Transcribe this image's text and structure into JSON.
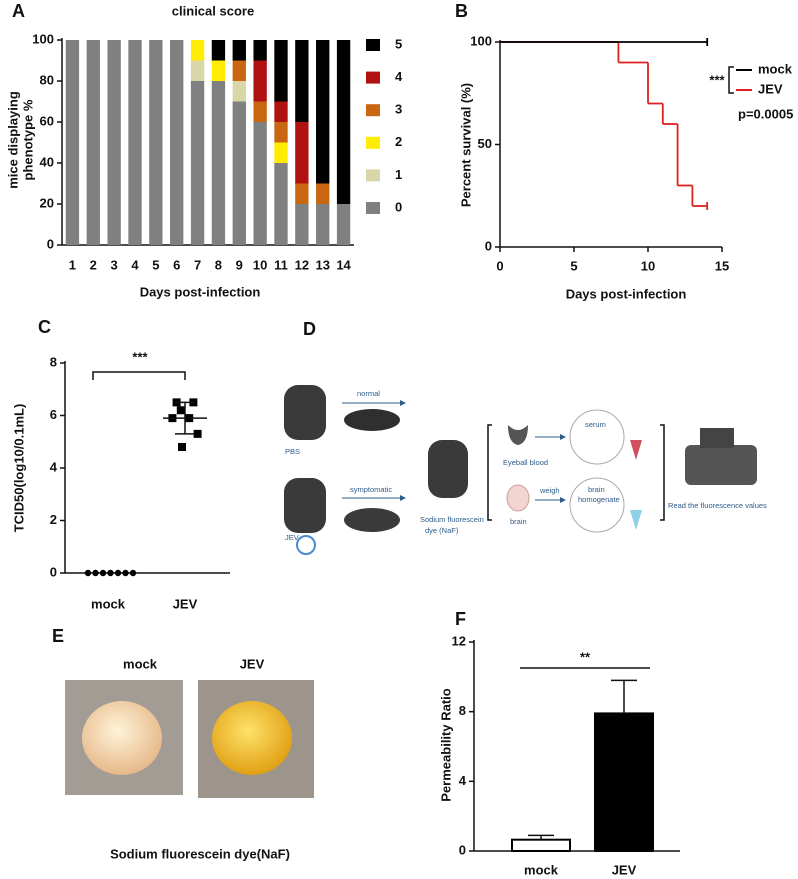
{
  "chart_data": [
    {
      "panel": "A",
      "type": "bar",
      "stacked": true,
      "title": "clinical score",
      "x_label": "Days post-infection",
      "y_label": [
        "mice displaying",
        "phenotype %"
      ],
      "categories": [
        "1",
        "2",
        "3",
        "4",
        "5",
        "6",
        "7",
        "8",
        "9",
        "10",
        "11",
        "12",
        "13",
        "14"
      ],
      "series": [
        {
          "name": "5",
          "color": "#000000",
          "values": [
            0,
            0,
            0,
            0,
            0,
            0,
            0,
            10,
            10,
            10,
            30,
            40,
            70,
            80
          ]
        },
        {
          "name": "4",
          "color": "#b01212",
          "values": [
            0,
            0,
            0,
            0,
            0,
            0,
            0,
            0,
            0,
            20,
            10,
            30,
            0,
            0
          ]
        },
        {
          "name": "3",
          "color": "#c96612",
          "values": [
            0,
            0,
            0,
            0,
            0,
            0,
            0,
            0,
            10,
            10,
            10,
            10,
            10,
            0
          ]
        },
        {
          "name": "2",
          "color": "#ffec00",
          "values": [
            0,
            0,
            0,
            0,
            0,
            0,
            10,
            10,
            0,
            0,
            10,
            0,
            0,
            0
          ]
        },
        {
          "name": "1",
          "color": "#d9d6a8",
          "values": [
            0,
            0,
            0,
            0,
            0,
            0,
            10,
            0,
            10,
            0,
            0,
            0,
            0,
            0
          ]
        },
        {
          "name": "0",
          "color": "#808080",
          "values": [
            100,
            100,
            100,
            100,
            100,
            100,
            80,
            80,
            70,
            60,
            40,
            20,
            20,
            20
          ]
        }
      ],
      "ylim": [
        0,
        100
      ],
      "yticks": [
        0,
        20,
        40,
        60,
        80,
        100
      ]
    },
    {
      "panel": "B",
      "type": "line",
      "step": true,
      "x_label": "Days post-infection",
      "y_label": "Percent survival (%)",
      "series": [
        {
          "name": "mock",
          "color": "#000000",
          "x": [
            0,
            14
          ],
          "values": [
            100,
            100
          ]
        },
        {
          "name": "JEV",
          "color": "#e02020",
          "x": [
            0,
            8,
            10,
            11,
            12,
            13,
            14
          ],
          "values": [
            100,
            90,
            70,
            60,
            30,
            20,
            20
          ]
        }
      ],
      "xlim": [
        0,
        15
      ],
      "xticks": [
        0,
        5,
        10,
        15
      ],
      "ylim": [
        0,
        100
      ],
      "yticks": [
        0,
        50,
        100
      ],
      "annotations": [
        "***",
        "p=0.0005"
      ]
    },
    {
      "panel": "C",
      "type": "scatter",
      "categorical": true,
      "y_label": "TCID50(log10/0.1mL)",
      "categories": [
        "mock",
        "JEV"
      ],
      "groups": [
        {
          "marker": "circle",
          "values": [
            0,
            0,
            0,
            0,
            0,
            0,
            0
          ]
        },
        {
          "marker": "square",
          "values": [
            6.5,
            6.5,
            6.2,
            5.9,
            5.9,
            5.3,
            4.8
          ],
          "mean": 5.9,
          "sd": 0.6
        }
      ],
      "ylim": [
        0,
        8
      ],
      "yticks": [
        0,
        2,
        4,
        6,
        8
      ],
      "annotation": "***"
    },
    {
      "panel": "F",
      "type": "bar",
      "y_label": "Permeability Ratio",
      "categories": [
        "mock",
        "JEV"
      ],
      "values": [
        0.65,
        7.9
      ],
      "errors": [
        0.25,
        1.9
      ],
      "colors": [
        "#ffffff",
        "#000000"
      ],
      "ylim": [
        0,
        12
      ],
      "yticks": [
        0,
        4,
        8,
        12
      ],
      "annotation": "**"
    }
  ],
  "diagram": {
    "panel": "D",
    "labels": {
      "normal": "normal",
      "pbs": "PBS",
      "symptomatic": "symptomatic",
      "jev": "JEV",
      "dye": [
        "Sodium fluorescein",
        "dye (NaF)"
      ],
      "eyeball": "Eyeball blood",
      "serum": "serum",
      "brain": "brain",
      "weigh": "weigh",
      "homogenate": [
        "brain",
        "homogenate"
      ],
      "read": "Read the fluorescence values"
    }
  },
  "photos": {
    "panel": "E",
    "labels": [
      "mock",
      "JEV"
    ],
    "caption": "Sodium fluorescein dye(NaF)"
  }
}
